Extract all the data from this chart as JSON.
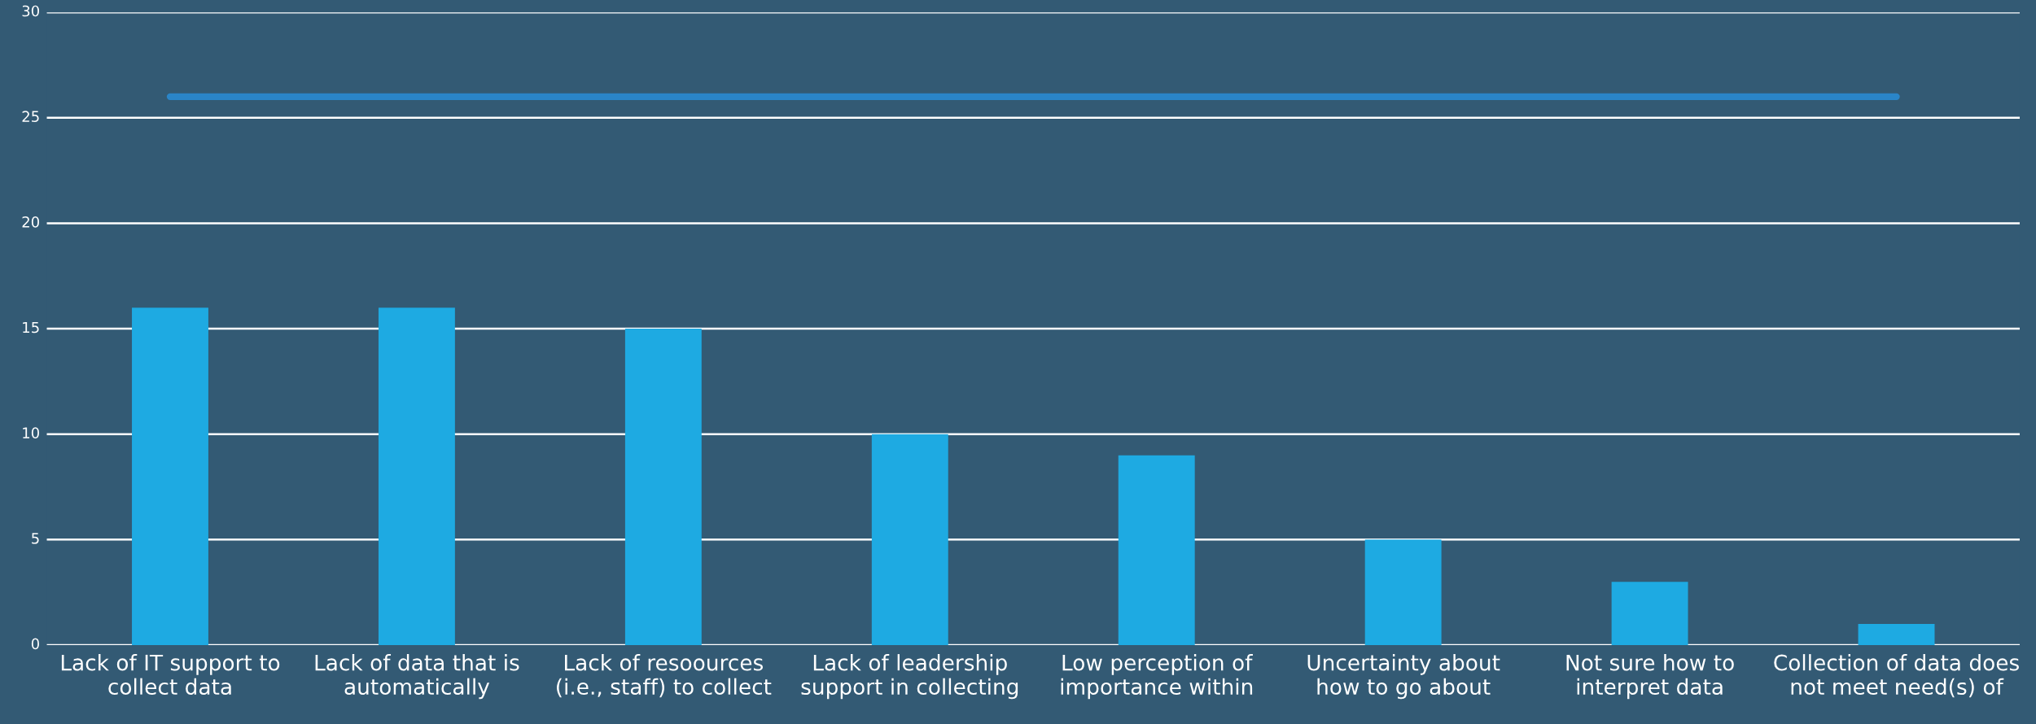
{
  "chart_data": {
    "type": "bar",
    "categories": [
      "Lack of IT support to\ncollect data",
      "Lack of data that is\nautomatically",
      "Lack of resoources\n(i.e., staff) to collect",
      "Lack of leadership\nsupport in collecting",
      "Low perception of\nimportance within",
      "Uncertainty about\nhow to go about",
      "Not sure how to\ninterpret data",
      "Collection of data does\nnot meet need(s) of"
    ],
    "series": [
      {
        "color": "#1eaae2",
        "values": [
          16,
          16,
          15,
          10,
          9,
          5,
          3,
          1
        ]
      },
      {
        "type": "line",
        "color": "#2a85c8",
        "values": [
          26,
          26,
          26,
          26,
          26,
          26,
          26,
          26
        ]
      }
    ],
    "ylim": [
      0,
      30
    ],
    "yticks": [
      0,
      5,
      10,
      15,
      20,
      25,
      30
    ],
    "grid": "y",
    "legend": false
  }
}
